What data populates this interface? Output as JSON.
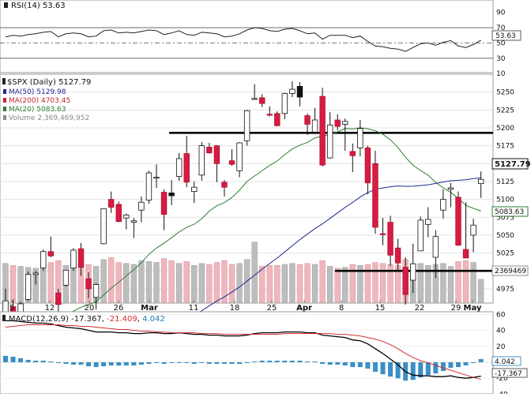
{
  "rsi": {
    "label": "RSI(14)",
    "value": "53.63",
    "ticks": [
      "90",
      "70",
      "50",
      "30",
      "10"
    ],
    "levels": {
      "upper": 70,
      "mid": 50,
      "lower": 30
    }
  },
  "price": {
    "title": "$SPX (Daily)",
    "last": "5127.79",
    "last_tag": "5127.79",
    "legend": [
      {
        "label": "MA(50)",
        "value": "5129.98",
        "color": "#1e2a8c"
      },
      {
        "label": "MA(200)",
        "value": "4703.45",
        "color": "#c0282e"
      },
      {
        "label": "MA(20)",
        "value": "5083.63",
        "color": "#2e7d32"
      },
      {
        "label": "Volume",
        "value": "2,369,469,952",
        "color": "#888888"
      }
    ],
    "ma20_tag": "5083.63",
    "vol_tag": "2369469",
    "y_ticks": [
      "5250",
      "5225",
      "5200",
      "5175",
      "5150",
      "5125",
      "5100",
      "5075",
      "5050",
      "5025",
      "5000",
      "4975"
    ],
    "x_labels": [
      "5",
      "12",
      "20",
      "26",
      "Mar",
      "11",
      "18",
      "25",
      "Apr",
      "8",
      "15",
      "22",
      "29",
      "May"
    ],
    "support_resistance": [
      5193,
      5000
    ]
  },
  "macd": {
    "label": "MACD(12,26,9)",
    "values": [
      "-17.367",
      "-21.409",
      "4.042"
    ],
    "ticks": [
      "60",
      "40",
      "20",
      "0",
      "-20",
      "-40"
    ],
    "tags": [
      "4.042",
      "-17.367"
    ]
  },
  "chart_data": {
    "type": "candlestick",
    "symbol": "$SPX",
    "period": "Daily",
    "x": [
      "2/2",
      "2/5",
      "2/6",
      "2/7",
      "2/8",
      "2/9",
      "2/12",
      "2/13",
      "2/14",
      "2/15",
      "2/16",
      "2/20",
      "2/21",
      "2/22",
      "2/23",
      "2/26",
      "2/27",
      "2/28",
      "2/29",
      "3/1",
      "3/4",
      "3/5",
      "3/6",
      "3/7",
      "3/8",
      "3/11",
      "3/12",
      "3/13",
      "3/14",
      "3/15",
      "3/18",
      "3/19",
      "3/20",
      "3/21",
      "3/22",
      "3/25",
      "3/26",
      "3/27",
      "3/28",
      "4/1",
      "4/2",
      "4/3",
      "4/4",
      "4/5",
      "4/8",
      "4/9",
      "4/10",
      "4/11",
      "4/12",
      "4/15",
      "4/16",
      "4/17",
      "4/18",
      "4/19",
      "4/22",
      "4/23",
      "4/24",
      "4/25",
      "4/26",
      "4/29",
      "4/30",
      "5/1",
      "5/2",
      "5/3"
    ],
    "ohlc": [
      [
        4916,
        4975,
        4916,
        4958
      ],
      [
        4950,
        4960,
        4924,
        4942
      ],
      [
        4942,
        4957,
        4938,
        4954
      ],
      [
        4960,
        4999,
        4958,
        4995
      ],
      [
        4995,
        5000,
        4981,
        4997
      ],
      [
        5004,
        5030,
        5000,
        5027
      ],
      [
        5027,
        5048,
        5019,
        5021
      ],
      [
        4969,
        4975,
        4919,
        4953
      ],
      [
        4980,
        5001,
        4978,
        5001
      ],
      [
        5004,
        5032,
        5000,
        5029
      ],
      [
        5031,
        5039,
        4993,
        5005
      ],
      [
        4989,
        4998,
        4962,
        4975
      ],
      [
        4963,
        4983,
        4946,
        4981
      ],
      [
        5038,
        5087,
        5037,
        5087
      ],
      [
        5100,
        5111,
        5081,
        5089
      ],
      [
        5093,
        5097,
        5068,
        5069
      ],
      [
        5074,
        5080,
        5058,
        5078
      ],
      [
        5068,
        5074,
        5046,
        5070
      ],
      [
        5085,
        5104,
        5068,
        5096
      ],
      [
        5099,
        5140,
        5094,
        5137
      ],
      [
        5131,
        5149,
        5116,
        5131
      ],
      [
        5110,
        5114,
        5057,
        5079
      ],
      [
        5109,
        5127,
        5092,
        5105
      ],
      [
        5132,
        5165,
        5126,
        5157
      ],
      [
        5164,
        5189,
        5117,
        5124
      ],
      [
        5111,
        5125,
        5095,
        5117
      ],
      [
        5134,
        5180,
        5126,
        5175
      ],
      [
        5173,
        5179,
        5164,
        5165
      ],
      [
        5175,
        5176,
        5124,
        5150
      ],
      [
        5124,
        5127,
        5104,
        5117
      ],
      [
        5154,
        5170,
        5147,
        5149
      ],
      [
        5140,
        5180,
        5131,
        5179
      ],
      [
        5182,
        5225,
        5175,
        5224
      ],
      [
        5241,
        5261,
        5240,
        5241
      ],
      [
        5242,
        5247,
        5229,
        5234
      ],
      [
        5219,
        5230,
        5216,
        5218
      ],
      [
        5220,
        5223,
        5202,
        5203
      ],
      [
        5220,
        5249,
        5212,
        5248
      ],
      [
        5248,
        5265,
        5243,
        5254
      ],
      [
        5258,
        5264,
        5230,
        5243
      ],
      [
        5217,
        5220,
        5190,
        5205
      ],
      [
        5194,
        5228,
        5194,
        5211
      ],
      [
        5244,
        5256,
        5146,
        5148
      ],
      [
        5158,
        5222,
        5157,
        5204
      ],
      [
        5211,
        5219,
        5197,
        5202
      ],
      [
        5205,
        5213,
        5168,
        5209
      ],
      [
        5167,
        5178,
        5138,
        5161
      ],
      [
        5172,
        5211,
        5160,
        5199
      ],
      [
        5172,
        5175,
        5107,
        5123
      ],
      [
        5150,
        5168,
        5052,
        5061
      ],
      [
        5052,
        5074,
        5036,
        5051
      ],
      [
        5068,
        5077,
        5007,
        5022
      ],
      [
        5032,
        5045,
        5001,
        5011
      ],
      [
        5005,
        5019,
        4953,
        4967
      ],
      [
        4987,
        5038,
        4969,
        5010
      ],
      [
        5028,
        5076,
        5028,
        5071
      ],
      [
        5065,
        5089,
        5047,
        5072
      ],
      [
        5019,
        5057,
        4990,
        5048
      ],
      [
        5085,
        5114,
        5073,
        5100
      ],
      [
        5114,
        5123,
        5089,
        5116
      ],
      [
        5103,
        5111,
        5035,
        5036
      ],
      [
        5030,
        5096,
        5019,
        5018
      ],
      [
        5050,
        5073,
        5026,
        5064
      ],
      [
        5122,
        5139,
        5102,
        5128
      ]
    ],
    "volume_millions": [
      4000,
      3800,
      3700,
      3600,
      3500,
      3700,
      4100,
      4300,
      3800,
      4000,
      4200,
      3900,
      3700,
      4400,
      4600,
      4100,
      4000,
      3900,
      4300,
      4200,
      4100,
      4500,
      4300,
      4000,
      4200,
      3800,
      4000,
      3900,
      4100,
      4300,
      3900,
      4000,
      4400,
      6200,
      3700,
      3800,
      3800,
      3900,
      4000,
      3900,
      4000,
      3900,
      4300,
      3700,
      3500,
      3600,
      3900,
      3800,
      3900,
      4100,
      4000,
      3900,
      3800,
      4400,
      3900,
      4000,
      3800,
      3900,
      4000,
      3700,
      4200,
      4300,
      4100,
      2369
    ],
    "ma50_final": 5129.98,
    "ma200_final": 4703.45,
    "ma20_final": 5083.63,
    "rsi": [
      58,
      60,
      59,
      61,
      62,
      64,
      65,
      58,
      62,
      63,
      62,
      58,
      59,
      66,
      67,
      63,
      64,
      63,
      65,
      67,
      66,
      61,
      63,
      66,
      61,
      60,
      64,
      63,
      62,
      58,
      59,
      62,
      67,
      70,
      69,
      66,
      65,
      68,
      69,
      66,
      62,
      63,
      55,
      60,
      60,
      60,
      57,
      59,
      52,
      46,
      45,
      43,
      42,
      39,
      44,
      49,
      50,
      47,
      51,
      53,
      46,
      44,
      48,
      53.63
    ],
    "macd": [
      52,
      52,
      51,
      50,
      49,
      49,
      48,
      46,
      44,
      43,
      42,
      40,
      38,
      38,
      38,
      37,
      37,
      36,
      36,
      37,
      37,
      36,
      36,
      37,
      36,
      35,
      35,
      34,
      34,
      33,
      33,
      33,
      34,
      36,
      37,
      37,
      37,
      38,
      38,
      38,
      37,
      37,
      34,
      33,
      32,
      31,
      28,
      27,
      23,
      17,
      11,
      4,
      -3,
      -12,
      -16,
      -17,
      -17,
      -18,
      -18,
      -17,
      -19,
      -20,
      -19,
      -17.367
    ],
    "macd_signal": [
      44,
      45,
      46,
      47,
      47,
      47,
      47,
      47,
      46,
      46,
      45,
      45,
      44,
      43,
      42,
      41,
      41,
      40,
      39,
      39,
      38,
      38,
      37,
      37,
      37,
      37,
      36,
      36,
      36,
      35,
      35,
      35,
      35,
      35,
      35,
      35,
      35,
      36,
      36,
      36,
      36,
      36,
      36,
      36,
      35,
      35,
      34,
      33,
      31,
      29,
      26,
      22,
      17,
      11,
      6,
      2,
      -1,
      -4,
      -7,
      -10,
      -13,
      -16,
      -19,
      -21.409
    ],
    "ylim": [
      4955,
      5275
    ]
  }
}
